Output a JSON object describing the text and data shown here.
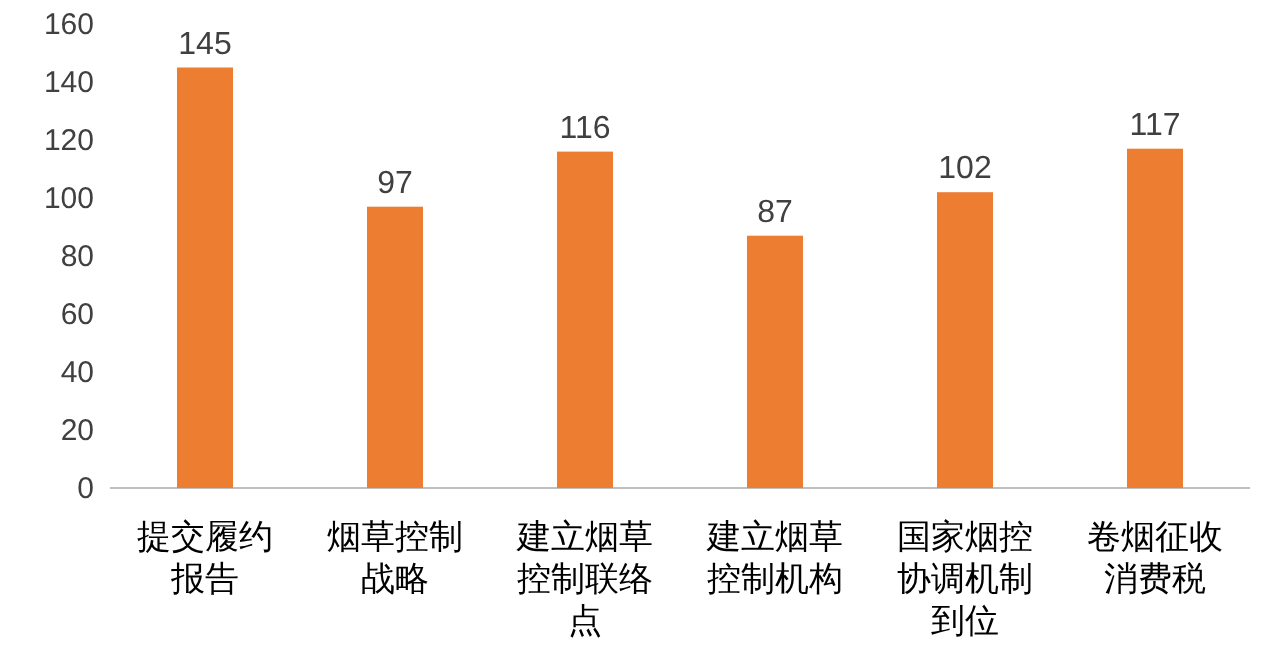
{
  "chart_data": {
    "type": "bar",
    "categories": [
      "提交履约报告",
      "烟草控制战略",
      "建立烟草控制联络点",
      "建立烟草控制机构",
      "国家烟控协调机制到位",
      "卷烟征收消费税"
    ],
    "values": [
      145,
      97,
      116,
      87,
      102,
      117
    ],
    "color": "#ed7d31",
    "ylim": [
      0,
      160
    ],
    "yticks": [
      0,
      20,
      40,
      60,
      80,
      100,
      120,
      140,
      160
    ],
    "data_labels": true
  }
}
